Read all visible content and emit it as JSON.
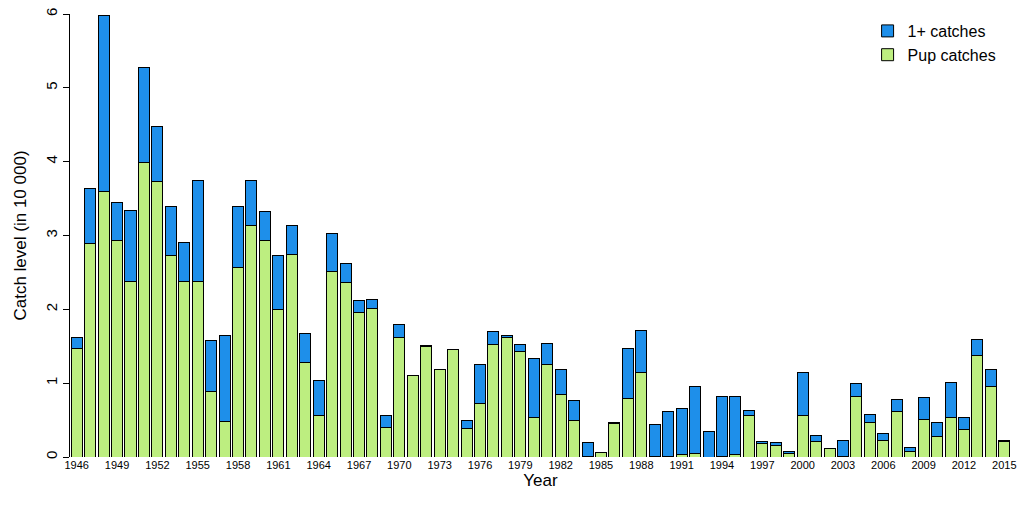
{
  "chart_data": {
    "type": "bar",
    "stacked": true,
    "x_label": "Year",
    "y_label": "Catch level (in 10 000)",
    "categories": [
      "1946",
      null,
      null,
      "1949",
      null,
      null,
      "1952",
      null,
      null,
      "1955",
      null,
      null,
      "1958",
      null,
      null,
      "1961",
      null,
      null,
      "1964",
      null,
      null,
      "1967",
      null,
      null,
      "1970",
      null,
      null,
      "1973",
      null,
      null,
      "1976",
      null,
      null,
      "1979",
      null,
      null,
      "1982",
      null,
      null,
      "1985",
      null,
      null,
      "1988",
      null,
      null,
      "1991",
      null,
      null,
      "1994",
      null,
      null,
      "1997",
      null,
      null,
      "2000",
      null,
      null,
      "2003",
      null,
      null,
      "2006",
      null,
      null,
      "2009",
      null,
      null,
      "2012",
      null,
      null,
      "2015"
    ],
    "series": [
      {
        "name": "Pup catches",
        "color": "#bdee80",
        "values": [
          1.47,
          2.89,
          3.6,
          2.93,
          2.38,
          3.99,
          3.73,
          2.73,
          2.38,
          2.38,
          0.89,
          0.48,
          2.57,
          3.13,
          2.93,
          2.0,
          2.74,
          1.28,
          0.56,
          2.51,
          2.37,
          1.96,
          2.01,
          0.4,
          1.62,
          1.11,
          1.49,
          1.18,
          1.46,
          0.39,
          0.72,
          1.52,
          1.62,
          1.43,
          0.53,
          1.25,
          0.85,
          0.5,
          0.01,
          0.06,
          0.45,
          0.79,
          1.14,
          0.01,
          0.01,
          0.04,
          0.05,
          0,
          0.01,
          0.03,
          0.56,
          0.18,
          0.16,
          0.05,
          0.56,
          0.21,
          0.11,
          0.01,
          0.82,
          0.47,
          0.22,
          0.61,
          0.07,
          0.51,
          0.28,
          0.53,
          0.37,
          1.38,
          0.96,
          0.21
        ]
      },
      {
        "name": "1+ catches",
        "color": "#1e8fea",
        "values": [
          0.15,
          0.75,
          2.38,
          0.52,
          0.96,
          1.28,
          0.74,
          0.66,
          0.53,
          1.36,
          0.69,
          1.17,
          0.82,
          0.62,
          0.39,
          0.73,
          0.39,
          0.39,
          0.48,
          0.52,
          0.25,
          0.16,
          0.12,
          0.16,
          0.18,
          0,
          0.02,
          0,
          0,
          0.11,
          0.53,
          0.18,
          0.02,
          0.09,
          0.81,
          0.29,
          0.33,
          0.26,
          0.19,
          0,
          0.02,
          0.68,
          0.57,
          0.43,
          0.61,
          0.62,
          0.9,
          0.34,
          0.81,
          0.79,
          0.07,
          0.03,
          0.03,
          0.02,
          0.59,
          0.08,
          0.01,
          0.21,
          0.17,
          0.11,
          0.1,
          0.17,
          0.06,
          0.29,
          0.19,
          0.48,
          0.17,
          0.21,
          0.23,
          0.01
        ]
      }
    ],
    "ylim": [
      0,
      6
    ],
    "yticks": [
      0,
      1,
      2,
      3,
      4,
      5,
      6
    ],
    "grid": false,
    "legend": "top-right"
  }
}
